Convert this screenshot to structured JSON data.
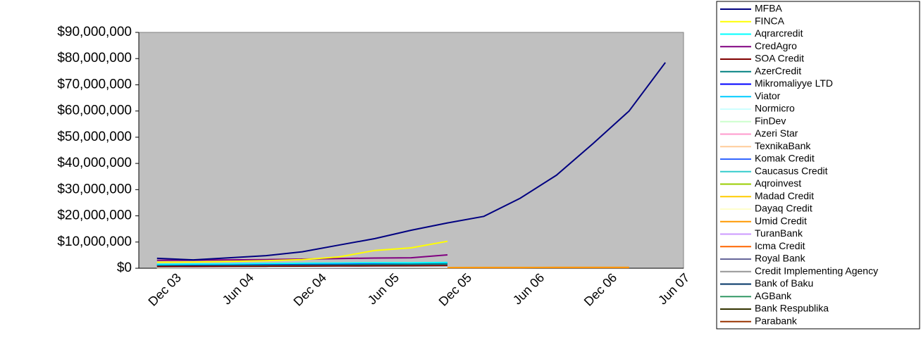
{
  "chart_data": {
    "type": "line",
    "categories": [
      "Dec 03",
      null,
      "Jun 04",
      null,
      "Dec 04",
      null,
      "Jun 05",
      null,
      "Dec 05",
      null,
      "Jun 06",
      null,
      "Dec 06",
      null,
      "Jun 07"
    ],
    "ylim": [
      0,
      90000000
    ],
    "yticks": [
      {
        "value": 0,
        "label": "$0"
      },
      {
        "value": 10000000,
        "label": "$10,000,000"
      },
      {
        "value": 20000000,
        "label": "$20,000,000"
      },
      {
        "value": 30000000,
        "label": "$30,000,000"
      },
      {
        "value": 40000000,
        "label": "$40,000,000"
      },
      {
        "value": 50000000,
        "label": "$50,000,000"
      },
      {
        "value": 60000000,
        "label": "$60,000,000"
      },
      {
        "value": 70000000,
        "label": "$70,000,000"
      },
      {
        "value": 80000000,
        "label": "$80,000,000"
      },
      {
        "value": 90000000,
        "label": "$90,000,000"
      }
    ],
    "grid": false,
    "legend": "right",
    "background": "#c0c0c0",
    "series": [
      {
        "name": "MFBA",
        "color": "#000080",
        "values": [
          3800000,
          3200000,
          4000000,
          4800000,
          6300000,
          8800000,
          11300000,
          14500000,
          17300000,
          19800000,
          26700000,
          35500000,
          47500000,
          60000000,
          78500000
        ]
      },
      {
        "name": "FINCA",
        "color": "#ffff00",
        "values": [
          2300000,
          2400000,
          2600000,
          2900000,
          3300000,
          4300000,
          6800000,
          7800000,
          10300000,
          null,
          null,
          null,
          null,
          null,
          null
        ]
      },
      {
        "name": "Aqrarcredit",
        "color": "#00ffff",
        "values": [
          1500000,
          1600000,
          1700000,
          1800000,
          1900000,
          2000000,
          2100000,
          2100000,
          2200000,
          null,
          null,
          null,
          null,
          null,
          null
        ]
      },
      {
        "name": "CredAgro",
        "color": "#800080",
        "values": [
          3000000,
          3100000,
          3200000,
          3300000,
          3500000,
          3700000,
          3900000,
          4000000,
          5100000,
          null,
          null,
          null,
          null,
          null,
          null
        ]
      },
      {
        "name": "SOA Credit",
        "color": "#800000",
        "values": [
          600000,
          650000,
          700000,
          750000,
          800000,
          850000,
          900000,
          950000,
          1000000,
          null,
          null,
          null,
          null,
          null,
          null
        ]
      },
      {
        "name": "AzerCredit",
        "color": "#008080",
        "values": [
          900000,
          950000,
          1000000,
          1100000,
          1200000,
          1300000,
          1400000,
          1500000,
          1600000,
          null,
          null,
          null,
          null,
          null,
          null
        ]
      },
      {
        "name": "Mikromaliyye LTD",
        "color": "#0000ff",
        "values": [
          1200000,
          1300000,
          1400000,
          1500000,
          1600000,
          1700000,
          1800000,
          1900000,
          2000000,
          null,
          null,
          null,
          null,
          null,
          null
        ]
      },
      {
        "name": "Viator",
        "color": "#00ccff",
        "values": [
          1000000,
          1100000,
          1200000,
          1300000,
          1400000,
          1500000,
          1600000,
          1700000,
          1800000,
          null,
          null,
          null,
          null,
          null,
          null
        ]
      },
      {
        "name": "Normicro",
        "color": "#ccffff",
        "values": [
          400000,
          420000,
          450000,
          480000,
          500000,
          520000,
          550000,
          580000,
          600000,
          null,
          null,
          null,
          null,
          null,
          null
        ]
      },
      {
        "name": "FinDev",
        "color": "#ccffcc",
        "values": [
          300000,
          320000,
          340000,
          360000,
          380000,
          400000,
          420000,
          440000,
          460000,
          null,
          null,
          null,
          null,
          null,
          null
        ]
      },
      {
        "name": "Azeri Star",
        "color": "#ff99cc",
        "values": [
          200000,
          210000,
          220000,
          230000,
          240000,
          250000,
          260000,
          270000,
          280000,
          null,
          null,
          null,
          null,
          null,
          null
        ]
      },
      {
        "name": "TexnikaBank",
        "color": "#ffcc99",
        "values": [
          250000,
          260000,
          270000,
          280000,
          290000,
          300000,
          310000,
          320000,
          330000,
          null,
          null,
          null,
          null,
          null,
          null
        ]
      },
      {
        "name": "Komak Credit",
        "color": "#3366ff",
        "values": [
          150000,
          160000,
          170000,
          180000,
          190000,
          200000,
          210000,
          220000,
          230000,
          null,
          null,
          null,
          null,
          null,
          null
        ]
      },
      {
        "name": "Caucasus Credit",
        "color": "#33cccc",
        "values": [
          350000,
          360000,
          370000,
          380000,
          390000,
          400000,
          410000,
          420000,
          430000,
          null,
          null,
          null,
          null,
          null,
          null
        ]
      },
      {
        "name": "Aqroinvest",
        "color": "#99cc00",
        "values": [
          100000,
          110000,
          120000,
          130000,
          140000,
          150000,
          160000,
          170000,
          180000,
          null,
          null,
          null,
          null,
          null,
          null
        ]
      },
      {
        "name": "Madad Credit",
        "color": "#ffcc00",
        "values": [
          120000,
          130000,
          140000,
          150000,
          160000,
          170000,
          180000,
          190000,
          200000,
          null,
          null,
          null,
          null,
          null,
          null
        ]
      },
      {
        "name": "Dayaq Credit",
        "color": "#ffffcc",
        "values": [
          80000,
          90000,
          100000,
          110000,
          120000,
          130000,
          140000,
          150000,
          160000,
          null,
          null,
          null,
          null,
          null,
          null
        ]
      },
      {
        "name": "Umid Credit",
        "color": "#ff9900",
        "values": [
          200000,
          210000,
          220000,
          230000,
          240000,
          250000,
          260000,
          270000,
          280000,
          290000,
          300000,
          310000,
          320000,
          330000,
          null
        ]
      },
      {
        "name": "TuranBank",
        "color": "#cc99ff",
        "values": [
          60000,
          70000,
          80000,
          90000,
          100000,
          110000,
          120000,
          130000,
          140000,
          null,
          null,
          null,
          null,
          null,
          null
        ]
      },
      {
        "name": "Icma Credit",
        "color": "#ff6600",
        "values": [
          150000,
          160000,
          170000,
          180000,
          190000,
          200000,
          210000,
          220000,
          230000,
          240000,
          250000,
          260000,
          270000,
          280000,
          null
        ]
      },
      {
        "name": "Royal Bank",
        "color": "#666699",
        "values": [
          50000,
          60000,
          70000,
          80000,
          90000,
          100000,
          110000,
          120000,
          130000,
          null,
          null,
          null,
          null,
          null,
          null
        ]
      },
      {
        "name": "Credit Implementing Agency",
        "color": "#969696",
        "values": [
          70000,
          80000,
          90000,
          100000,
          110000,
          120000,
          130000,
          140000,
          150000,
          null,
          null,
          null,
          null,
          null,
          null
        ]
      },
      {
        "name": "Bank of Baku",
        "color": "#003366",
        "values": [
          40000,
          50000,
          60000,
          70000,
          80000,
          90000,
          100000,
          110000,
          120000,
          null,
          null,
          null,
          null,
          null,
          null
        ]
      },
      {
        "name": "AGBank",
        "color": "#339966",
        "values": [
          30000,
          40000,
          50000,
          60000,
          70000,
          80000,
          90000,
          100000,
          110000,
          null,
          null,
          null,
          null,
          null,
          null
        ]
      },
      {
        "name": "Bank Respublika",
        "color": "#333300",
        "values": [
          20000,
          30000,
          40000,
          50000,
          60000,
          70000,
          80000,
          90000,
          100000,
          null,
          null,
          null,
          null,
          null,
          null
        ]
      },
      {
        "name": "Parabank",
        "color": "#993300",
        "values": [
          10000,
          20000,
          30000,
          40000,
          50000,
          60000,
          70000,
          80000,
          90000,
          null,
          null,
          null,
          null,
          null,
          null
        ]
      }
    ]
  }
}
